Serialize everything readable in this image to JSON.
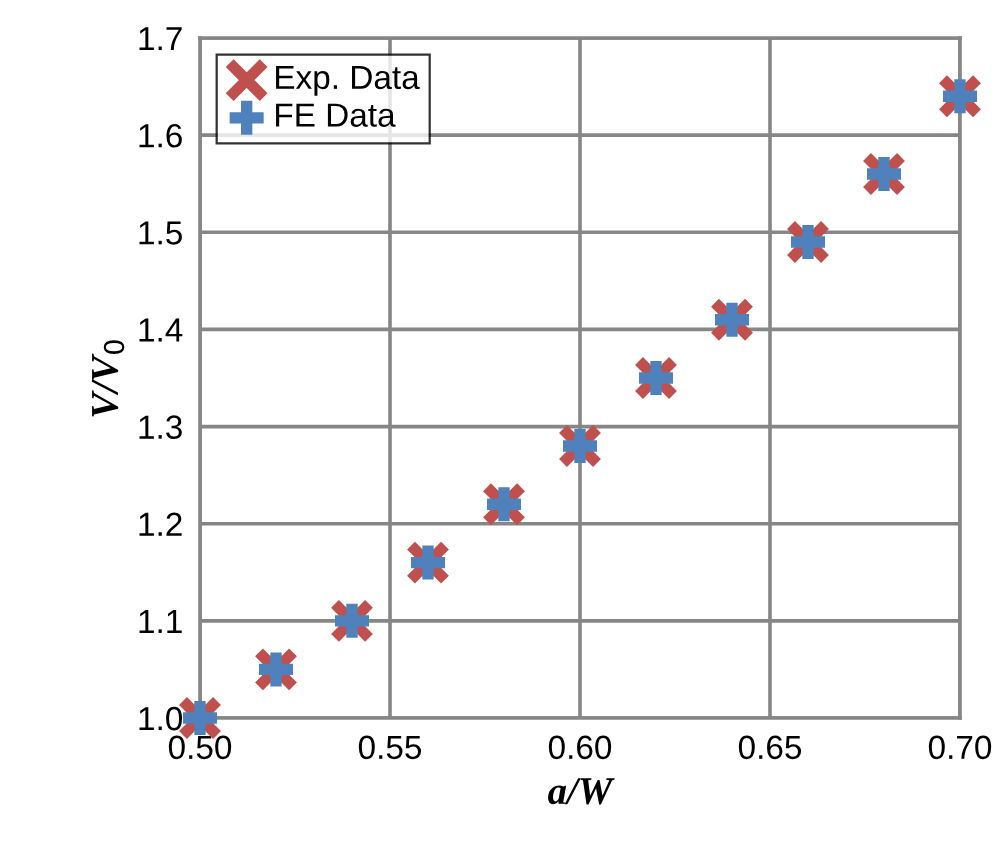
{
  "chart_data": {
    "type": "scatter",
    "xlabel": "a/W",
    "ylabel": "V/V$_{0}$",
    "x": [
      0.5,
      0.52,
      0.54,
      0.56,
      0.58,
      0.6,
      0.62,
      0.64,
      0.66,
      0.68,
      0.7
    ],
    "series": [
      {
        "name": "Exp. Data",
        "color": "#c0504d",
        "marker": "cross",
        "values": [
          1.0,
          1.05,
          1.1,
          1.16,
          1.22,
          1.28,
          1.35,
          1.41,
          1.49,
          1.56,
          1.64
        ]
      },
      {
        "name": "FE Data",
        "color": "#4f81bd",
        "marker": "plus",
        "values": [
          1.0,
          1.05,
          1.1,
          1.16,
          1.22,
          1.28,
          1.35,
          1.41,
          1.49,
          1.56,
          1.64
        ]
      }
    ],
    "xlim": [
      0.5,
      0.7
    ],
    "xticks": [
      {
        "value": 0.5,
        "label": "0.50"
      },
      {
        "value": 0.55,
        "label": "0.55"
      },
      {
        "value": 0.6,
        "label": "0.60"
      },
      {
        "value": 0.65,
        "label": "0.65"
      },
      {
        "value": 0.7,
        "label": "0.70"
      }
    ],
    "ylim": [
      1.0,
      1.7
    ],
    "yticks": [
      {
        "value": 1.0,
        "label": "1.0"
      },
      {
        "value": 1.1,
        "label": "1.1"
      },
      {
        "value": 1.2,
        "label": "1.2"
      },
      {
        "value": 1.3,
        "label": "1.3"
      },
      {
        "value": 1.4,
        "label": "1.4"
      },
      {
        "value": 1.5,
        "label": "1.5"
      },
      {
        "value": 1.6,
        "label": "1.6"
      },
      {
        "value": 1.7,
        "label": "1.7"
      }
    ],
    "grid": true,
    "legend": "top left"
  }
}
